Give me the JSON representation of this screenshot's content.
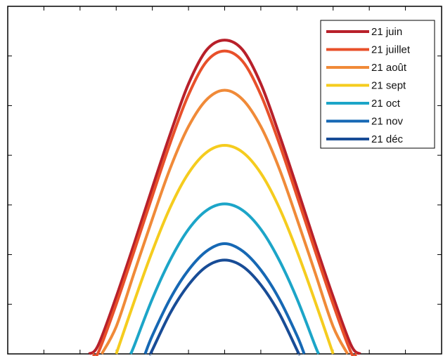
{
  "chart_data": {
    "type": "line",
    "title": "",
    "xlabel": "",
    "ylabel": "",
    "xlim": [
      0,
      24
    ],
    "ylim": [
      0,
      70
    ],
    "x_ticks": [
      0,
      2,
      4,
      6,
      8,
      10,
      12,
      14,
      16,
      18,
      20,
      22
    ],
    "y_ticks": [
      0,
      10,
      20,
      30,
      40,
      50,
      60,
      70
    ],
    "grid": false,
    "legend_position": "top-right",
    "series": [
      {
        "name": "21 juin",
        "color": "#b8202a",
        "x": [
          4.5,
          5,
          6,
          7,
          8,
          9,
          10,
          11,
          12,
          13,
          14,
          15,
          16,
          17,
          18,
          19,
          19.5
        ],
        "y": [
          0,
          1.7,
          11.5,
          22.3,
          33.5,
          44.4,
          54.4,
          61.2,
          63.2,
          61.2,
          54.4,
          44.4,
          33.5,
          22.3,
          11.5,
          1.7,
          0
        ]
      },
      {
        "name": "21 juillet",
        "color": "#e8502a",
        "x": [
          4.7,
          5,
          6,
          7,
          8,
          9,
          10,
          11,
          12,
          13,
          14,
          15,
          16,
          17,
          18,
          19,
          19.3
        ],
        "y": [
          0,
          0.2,
          10.0,
          20.8,
          31.8,
          42.6,
          52.2,
          58.9,
          61.0,
          58.9,
          52.2,
          42.6,
          31.8,
          20.8,
          10.0,
          0.2,
          0
        ]
      },
      {
        "name": "21 août",
        "color": "#f08a38",
        "x": [
          5.2,
          6,
          7,
          8,
          9,
          10,
          11,
          12,
          13,
          14,
          15,
          16,
          17,
          18,
          18.8
        ],
        "y": [
          0,
          5.5,
          16.4,
          27.2,
          37.5,
          45.8,
          51.2,
          53.1,
          51.2,
          45.8,
          37.5,
          27.2,
          16.4,
          5.5,
          0
        ]
      },
      {
        "name": "21 sept",
        "color": "#f5cc1e",
        "x": [
          6,
          7,
          8,
          9,
          10,
          11,
          12,
          13,
          14,
          15,
          16,
          17,
          18
        ],
        "y": [
          0,
          10.6,
          20.7,
          29.6,
          36.4,
          40.6,
          42.0,
          40.6,
          36.4,
          29.6,
          20.7,
          10.6,
          0
        ]
      },
      {
        "name": "21 oct",
        "color": "#1ca5c8",
        "x": [
          6.8,
          7,
          8,
          9,
          10,
          11,
          12,
          13,
          14,
          15,
          16,
          17,
          17.2
        ],
        "y": [
          0,
          1.7,
          11.1,
          19.0,
          25.1,
          28.9,
          30.2,
          28.9,
          25.1,
          19.0,
          11.1,
          1.7,
          0
        ]
      },
      {
        "name": "21 nov",
        "color": "#1668b4",
        "x": [
          7.6,
          8,
          9,
          10,
          11,
          12,
          13,
          14,
          15,
          16,
          16.4
        ],
        "y": [
          0,
          3.7,
          11.2,
          16.9,
          20.7,
          22.2,
          20.7,
          16.9,
          11.2,
          3.7,
          0
        ]
      },
      {
        "name": "21 déc",
        "color": "#184c96",
        "x": [
          7.9,
          8,
          9,
          10,
          11,
          12,
          13,
          14,
          15,
          16,
          16.1
        ],
        "y": [
          0,
          0.8,
          8.3,
          13.9,
          17.6,
          18.9,
          17.6,
          13.9,
          8.3,
          0.8,
          0
        ]
      }
    ]
  }
}
